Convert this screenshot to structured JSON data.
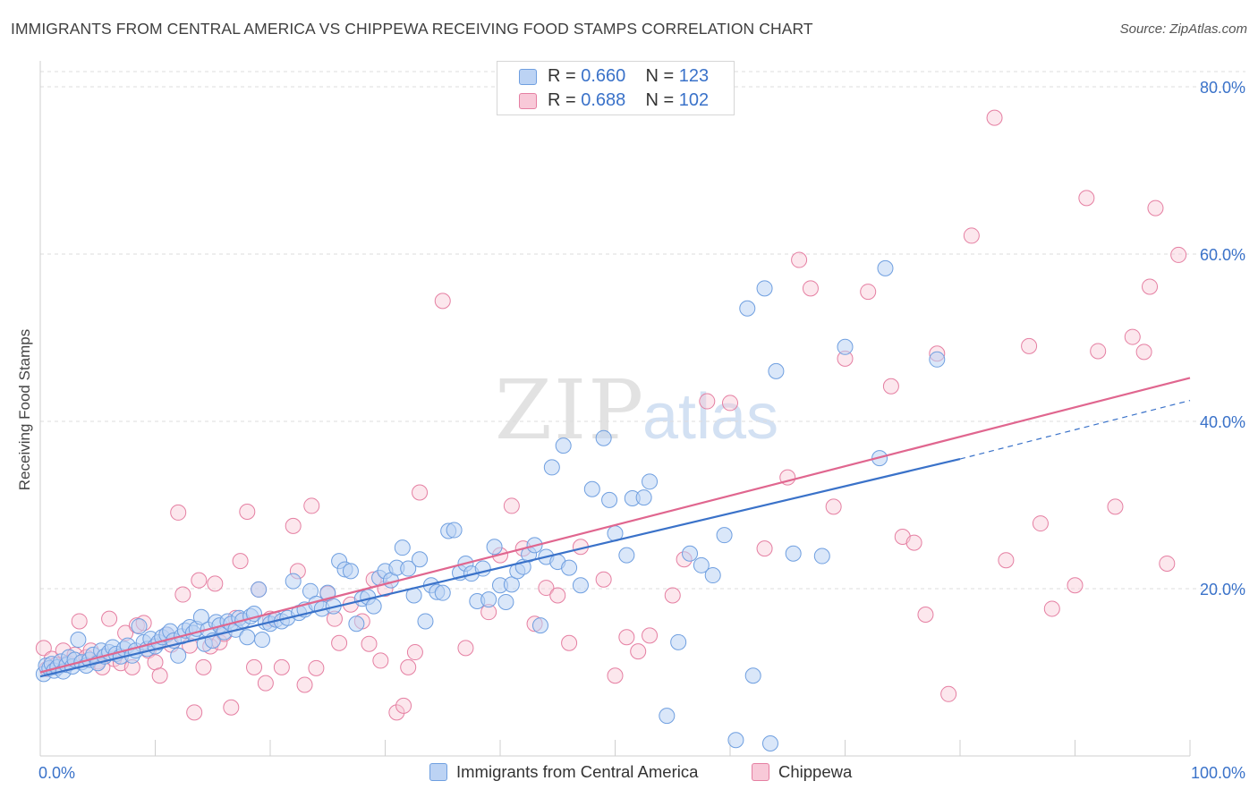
{
  "title": "IMMIGRANTS FROM CENTRAL AMERICA VS CHIPPEWA RECEIVING FOOD STAMPS CORRELATION CHART",
  "source": {
    "prefix": "Source:",
    "name": "ZipAtlas.com"
  },
  "watermark": {
    "part1": "ZIP",
    "part2": "atlas"
  },
  "legend": {
    "entries": [
      {
        "r_label": "R =",
        "r_value": "0.660",
        "n_label": "N =",
        "n_value": "123",
        "color": "#6f9fe0",
        "fill": "#bcd3f4"
      },
      {
        "r_label": "R =",
        "r_value": "0.688",
        "n_label": "N =",
        "n_value": "102",
        "color": "#e57fa2",
        "fill": "#f8c9d8"
      }
    ]
  },
  "colors": {
    "blue_line": "#3a72c9",
    "pink_line": "#e0668f",
    "axis_text": "#3a72c9",
    "grid": "#dcdcdc"
  },
  "chart_data": {
    "type": "scatter",
    "xlabel": "",
    "ylabel": "Receiving Food Stamps",
    "xlim": [
      0,
      100
    ],
    "ylim": [
      0,
      80
    ],
    "x_tick_labels": [
      {
        "value": 0,
        "label": "0.0%"
      },
      {
        "value": 100,
        "label": "100.0%"
      }
    ],
    "y_tick_labels": [
      {
        "value": 20,
        "label": "20.0%"
      },
      {
        "value": 40,
        "label": "40.0%"
      },
      {
        "value": 60,
        "label": "60.0%"
      },
      {
        "value": 80,
        "label": "80.0%"
      }
    ],
    "grid": true,
    "series": [
      {
        "name": "Immigrants from Central America",
        "r": 0.66,
        "n": 123,
        "trend": {
          "x": [
            0,
            80
          ],
          "y": [
            9.5,
            35.5
          ],
          "dashed_extension_to_x": 100,
          "dashed_extension_y": 42.5
        },
        "points": [
          [
            0.3,
            9.8
          ],
          [
            0.5,
            10.8
          ],
          [
            0.8,
            10.5
          ],
          [
            1.0,
            11.0
          ],
          [
            1.2,
            10.2
          ],
          [
            1.5,
            10.6
          ],
          [
            1.8,
            11.3
          ],
          [
            2.0,
            10.1
          ],
          [
            2.3,
            10.9
          ],
          [
            2.5,
            11.8
          ],
          [
            2.8,
            10.7
          ],
          [
            3.0,
            11.5
          ],
          [
            3.3,
            13.9
          ],
          [
            3.6,
            11.2
          ],
          [
            4.0,
            10.8
          ],
          [
            4.3,
            11.5
          ],
          [
            4.6,
            12.1
          ],
          [
            5.0,
            11.1
          ],
          [
            5.3,
            12.6
          ],
          [
            5.6,
            11.9
          ],
          [
            6.0,
            12.4
          ],
          [
            6.3,
            13.0
          ],
          [
            6.6,
            12.2
          ],
          [
            7.0,
            11.9
          ],
          [
            7.3,
            12.8
          ],
          [
            7.6,
            13.2
          ],
          [
            8.0,
            12.0
          ],
          [
            8.3,
            12.6
          ],
          [
            8.6,
            15.5
          ],
          [
            9.0,
            13.6
          ],
          [
            9.3,
            12.8
          ],
          [
            9.6,
            14.0
          ],
          [
            10.0,
            13.1
          ],
          [
            10.3,
            13.6
          ],
          [
            10.6,
            14.2
          ],
          [
            11.0,
            14.5
          ],
          [
            11.3,
            14.9
          ],
          [
            11.6,
            13.8
          ],
          [
            12.0,
            12.0
          ],
          [
            12.3,
            14.3
          ],
          [
            12.6,
            15.0
          ],
          [
            13.0,
            15.4
          ],
          [
            13.3,
            14.7
          ],
          [
            13.6,
            15.2
          ],
          [
            14.0,
            16.6
          ],
          [
            14.3,
            13.4
          ],
          [
            14.6,
            15.1
          ],
          [
            15.0,
            13.8
          ],
          [
            15.3,
            16.0
          ],
          [
            15.6,
            15.6
          ],
          [
            16.0,
            14.8
          ],
          [
            16.3,
            16.1
          ],
          [
            16.6,
            15.8
          ],
          [
            17.0,
            15.1
          ],
          [
            17.3,
            16.5
          ],
          [
            17.6,
            16.2
          ],
          [
            18.0,
            14.2
          ],
          [
            18.3,
            16.7
          ],
          [
            18.6,
            17.0
          ],
          [
            19.0,
            19.9
          ],
          [
            19.3,
            13.9
          ],
          [
            19.6,
            16.0
          ],
          [
            20.0,
            15.8
          ],
          [
            20.5,
            16.3
          ],
          [
            21.0,
            16.1
          ],
          [
            21.5,
            16.5
          ],
          [
            22.0,
            20.9
          ],
          [
            22.5,
            17.1
          ],
          [
            23.0,
            17.5
          ],
          [
            23.5,
            19.7
          ],
          [
            24.0,
            18.2
          ],
          [
            24.5,
            17.6
          ],
          [
            25.0,
            19.5
          ],
          [
            25.5,
            17.9
          ],
          [
            26.0,
            23.3
          ],
          [
            26.5,
            22.3
          ],
          [
            27.0,
            22.1
          ],
          [
            27.5,
            15.8
          ],
          [
            28.0,
            18.8
          ],
          [
            28.5,
            19.0
          ],
          [
            29.0,
            17.9
          ],
          [
            29.5,
            21.3
          ],
          [
            30.0,
            22.1
          ],
          [
            30.5,
            21.0
          ],
          [
            31.0,
            22.5
          ],
          [
            31.5,
            24.9
          ],
          [
            32.0,
            22.4
          ],
          [
            32.5,
            19.2
          ],
          [
            33.0,
            23.5
          ],
          [
            33.5,
            16.1
          ],
          [
            34.0,
            20.4
          ],
          [
            34.5,
            19.6
          ],
          [
            35.0,
            19.5
          ],
          [
            35.5,
            26.9
          ],
          [
            36.0,
            27.0
          ],
          [
            36.5,
            21.9
          ],
          [
            37.0,
            23.0
          ],
          [
            37.5,
            21.8
          ],
          [
            38.0,
            18.5
          ],
          [
            38.5,
            22.4
          ],
          [
            39.0,
            18.7
          ],
          [
            39.5,
            25.0
          ],
          [
            40.0,
            20.4
          ],
          [
            40.5,
            18.4
          ],
          [
            41.0,
            20.5
          ],
          [
            41.5,
            22.1
          ],
          [
            42.0,
            22.6
          ],
          [
            42.5,
            24.1
          ],
          [
            43.0,
            25.2
          ],
          [
            43.5,
            15.6
          ],
          [
            44.0,
            23.8
          ],
          [
            44.5,
            34.5
          ],
          [
            45.0,
            23.2
          ],
          [
            45.5,
            37.1
          ],
          [
            46.0,
            22.5
          ],
          [
            47.0,
            20.4
          ],
          [
            48.0,
            31.9
          ],
          [
            49.0,
            38.0
          ],
          [
            49.5,
            30.6
          ],
          [
            50.0,
            26.6
          ],
          [
            51.0,
            24.0
          ],
          [
            51.5,
            30.8
          ],
          [
            52.5,
            30.9
          ],
          [
            53.0,
            32.8
          ],
          [
            54.5,
            4.8
          ],
          [
            55.5,
            13.6
          ],
          [
            56.5,
            24.2
          ],
          [
            57.5,
            22.8
          ],
          [
            58.5,
            21.6
          ],
          [
            59.5,
            26.4
          ],
          [
            60.5,
            1.9
          ],
          [
            61.5,
            53.5
          ],
          [
            62.0,
            9.6
          ],
          [
            63.0,
            55.9
          ],
          [
            63.5,
            1.5
          ],
          [
            64.0,
            46.0
          ],
          [
            65.5,
            24.2
          ],
          [
            68.0,
            23.9
          ],
          [
            70.0,
            48.9
          ],
          [
            73.5,
            58.3
          ],
          [
            73.0,
            35.6
          ],
          [
            78.0,
            47.4
          ]
        ]
      },
      {
        "name": "Chippewa",
        "r": 0.688,
        "n": 102,
        "trend": {
          "x": [
            0,
            100
          ],
          "y": [
            10.0,
            45.2
          ]
        },
        "points": [
          [
            0.3,
            12.9
          ],
          [
            0.6,
            10.4
          ],
          [
            1.0,
            11.6
          ],
          [
            1.4,
            10.9
          ],
          [
            2.0,
            12.6
          ],
          [
            2.4,
            11.1
          ],
          [
            3.0,
            12.1
          ],
          [
            3.4,
            16.1
          ],
          [
            4.0,
            11.8
          ],
          [
            4.4,
            12.6
          ],
          [
            5.0,
            11.3
          ],
          [
            5.4,
            10.6
          ],
          [
            6.0,
            16.4
          ],
          [
            6.4,
            11.6
          ],
          [
            7.0,
            11.1
          ],
          [
            7.4,
            14.7
          ],
          [
            8.0,
            10.6
          ],
          [
            8.4,
            15.6
          ],
          [
            9.0,
            15.9
          ],
          [
            9.4,
            12.6
          ],
          [
            10.0,
            11.2
          ],
          [
            10.4,
            9.6
          ],
          [
            11.0,
            14.5
          ],
          [
            11.4,
            13.3
          ],
          [
            12.0,
            29.1
          ],
          [
            12.4,
            19.3
          ],
          [
            13.0,
            13.2
          ],
          [
            13.4,
            5.2
          ],
          [
            13.8,
            21.0
          ],
          [
            14.2,
            10.6
          ],
          [
            14.8,
            13.1
          ],
          [
            15.2,
            20.6
          ],
          [
            15.6,
            13.6
          ],
          [
            16.0,
            14.6
          ],
          [
            16.6,
            5.8
          ],
          [
            17.0,
            16.5
          ],
          [
            17.4,
            23.3
          ],
          [
            18.0,
            29.2
          ],
          [
            18.6,
            10.6
          ],
          [
            19.0,
            19.9
          ],
          [
            19.6,
            8.7
          ],
          [
            20.0,
            16.4
          ],
          [
            21.0,
            10.6
          ],
          [
            22.0,
            27.5
          ],
          [
            22.4,
            22.1
          ],
          [
            23.0,
            8.5
          ],
          [
            23.6,
            29.9
          ],
          [
            24.0,
            10.5
          ],
          [
            25.0,
            19.4
          ],
          [
            25.6,
            16.4
          ],
          [
            26.0,
            13.5
          ],
          [
            27.0,
            18.1
          ],
          [
            28.0,
            16.1
          ],
          [
            28.6,
            13.4
          ],
          [
            29.0,
            21.1
          ],
          [
            29.6,
            11.4
          ],
          [
            30.0,
            20.0
          ],
          [
            31.0,
            5.2
          ],
          [
            31.6,
            6.0
          ],
          [
            32.0,
            10.6
          ],
          [
            32.6,
            12.4
          ],
          [
            33.0,
            31.5
          ],
          [
            35.0,
            54.4
          ],
          [
            37.0,
            12.9
          ],
          [
            39.0,
            17.2
          ],
          [
            40.0,
            24.0
          ],
          [
            41.0,
            29.9
          ],
          [
            42.0,
            24.8
          ],
          [
            43.0,
            15.8
          ],
          [
            44.0,
            20.1
          ],
          [
            45.0,
            19.2
          ],
          [
            46.0,
            13.5
          ],
          [
            47.0,
            25.0
          ],
          [
            49.0,
            21.1
          ],
          [
            50.0,
            9.6
          ],
          [
            51.0,
            14.2
          ],
          [
            52.0,
            12.5
          ],
          [
            53.0,
            14.4
          ],
          [
            55.0,
            19.2
          ],
          [
            56.0,
            23.5
          ],
          [
            58.0,
            42.4
          ],
          [
            60.0,
            42.2
          ],
          [
            63.0,
            24.8
          ],
          [
            65.0,
            33.3
          ],
          [
            66.0,
            59.3
          ],
          [
            67.0,
            55.9
          ],
          [
            69.0,
            29.8
          ],
          [
            70.0,
            47.5
          ],
          [
            72.0,
            55.5
          ],
          [
            74.0,
            44.2
          ],
          [
            75.0,
            26.2
          ],
          [
            76.0,
            25.5
          ],
          [
            77.0,
            16.9
          ],
          [
            78.0,
            48.1
          ],
          [
            79.0,
            7.4
          ],
          [
            81.0,
            62.2
          ],
          [
            83.0,
            76.3
          ],
          [
            84.0,
            23.4
          ],
          [
            86.0,
            49.0
          ],
          [
            87.0,
            27.8
          ],
          [
            88.0,
            17.6
          ],
          [
            90.0,
            20.4
          ],
          [
            91.0,
            66.7
          ],
          [
            92.0,
            48.4
          ],
          [
            93.5,
            29.8
          ],
          [
            95.0,
            50.1
          ],
          [
            96.0,
            48.3
          ],
          [
            96.5,
            56.1
          ],
          [
            97.0,
            65.5
          ],
          [
            98.0,
            23.0
          ],
          [
            99.0,
            59.9
          ]
        ]
      }
    ]
  }
}
